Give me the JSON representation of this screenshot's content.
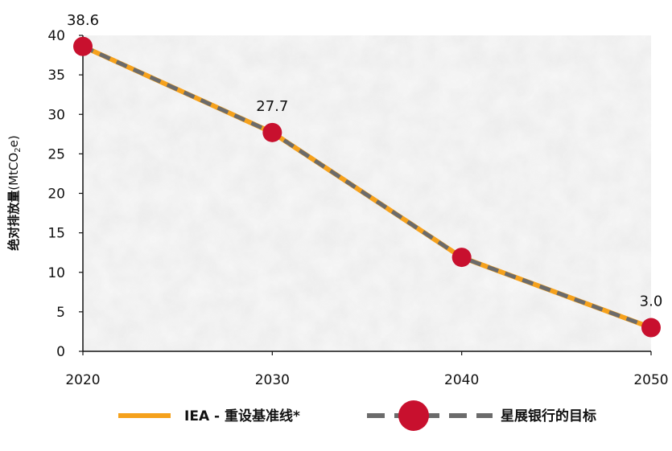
{
  "chart_data": {
    "type": "line",
    "x": [
      2020,
      2030,
      2040,
      2050
    ],
    "series": [
      {
        "name": "IEA - 重设基准线*",
        "values": [
          38.6,
          27.7,
          11.9,
          3.0
        ],
        "color": "#F5A11C"
      },
      {
        "name": "星展银行的目标",
        "values": [
          38.6,
          27.7,
          11.9,
          3.0
        ],
        "color": "#6B6B6B",
        "marker_color": "#C8102E"
      }
    ],
    "point_labels": [
      "38.6",
      "27.7",
      "",
      "3.0"
    ],
    "xlim": [
      2020,
      2050
    ],
    "ylim": [
      0,
      40
    ],
    "y_ticks": [
      "0",
      "5",
      "10",
      "15",
      "20",
      "25",
      "30",
      "35",
      "40"
    ],
    "x_ticks": [
      "2020",
      "2030",
      "2040",
      "2050"
    ],
    "ylabel": "绝对排放量(MtCO₂e)",
    "ylabel_bold": "绝对排放量",
    "ylabel_unit_prefix": "(MtCO",
    "ylabel_unit_sub": "2",
    "ylabel_unit_suffix": "e)",
    "legend_position": "bottom",
    "grid": false
  }
}
